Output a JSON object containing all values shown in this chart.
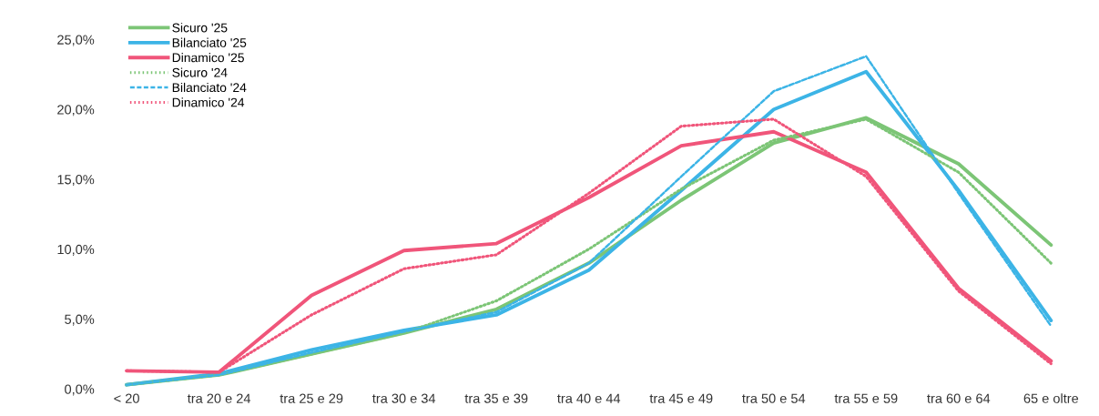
{
  "chart_data": {
    "type": "line",
    "categories": [
      "< 20",
      "tra 20 e 24",
      "tra 25 e 29",
      "tra 30 e 34",
      "tra 35 e 39",
      "tra 40 e 44",
      "tra 45 e 49",
      "tra 50 e 54",
      "tra 55 e 59",
      "tra 60 e 64",
      "65 e oltre"
    ],
    "ylim": [
      0,
      25
    ],
    "yticks": [
      {
        "value": 0,
        "label": "0,0%"
      },
      {
        "value": 5,
        "label": "5,0%"
      },
      {
        "value": 10,
        "label": "10,0%"
      },
      {
        "value": 15,
        "label": "15,0%"
      },
      {
        "value": 20,
        "label": "20,0%"
      },
      {
        "value": 25,
        "label": "25,0%"
      }
    ],
    "legend": "top left",
    "grid": false,
    "marker": "none",
    "series": [
      {
        "name": "Sicuro '25",
        "color": "#7cc576",
        "line_style": "solid",
        "values": [
          0.3,
          1.0,
          2.5,
          4.0,
          5.7,
          9.0,
          13.5,
          17.6,
          19.4,
          16.1,
          10.3
        ]
      },
      {
        "name": "Bilanciato '25",
        "color": "#3cb4e6",
        "line_style": "solid",
        "values": [
          0.3,
          1.1,
          2.8,
          4.2,
          5.3,
          8.5,
          14.2,
          20.0,
          22.7,
          14.2,
          4.9
        ]
      },
      {
        "name": "Dinamico '25",
        "color": "#f0557a",
        "line_style": "solid",
        "values": [
          1.3,
          1.2,
          6.7,
          9.9,
          10.4,
          13.7,
          17.4,
          18.4,
          15.5,
          7.2,
          2.0
        ]
      },
      {
        "name": "Sicuro '24",
        "color": "#7cc576",
        "line_style": "dotted",
        "values": [
          0.3,
          1.0,
          2.5,
          4.0,
          6.3,
          10.0,
          14.3,
          17.8,
          19.3,
          15.5,
          9.0
        ]
      },
      {
        "name": "Bilanciato '24",
        "color": "#3cb4e6",
        "line_style": "dashed",
        "values": [
          0.3,
          1.0,
          2.6,
          4.1,
          5.5,
          9.0,
          15.2,
          21.3,
          23.8,
          14.0,
          4.5
        ]
      },
      {
        "name": "Dinamico '24",
        "color": "#f0557a",
        "line_style": "dotted",
        "values": [
          1.3,
          1.2,
          5.3,
          8.6,
          9.6,
          14.0,
          18.8,
          19.3,
          15.2,
          7.0,
          1.8
        ]
      }
    ]
  }
}
